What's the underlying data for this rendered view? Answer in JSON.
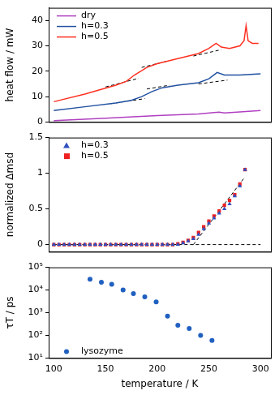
{
  "chart_data": [
    {
      "type": "line",
      "ylabel": "heat flow / mW",
      "xlim": [
        95,
        310
      ],
      "xticks": [
        100,
        150,
        200,
        250,
        300
      ],
      "ylim": [
        0,
        45
      ],
      "yticks": [
        0,
        10,
        20,
        30,
        40
      ],
      "grid": false,
      "legend": "upper left",
      "tick_labels": "y",
      "series": [
        {
          "name": "dry",
          "color": "#b040c0",
          "line_style": "solid",
          "x": [
            100,
            150,
            200,
            240,
            255,
            260,
            265,
            280,
            300
          ],
          "values": [
            0.5,
            1.5,
            2.5,
            3.2,
            3.7,
            3.9,
            3.6,
            4.0,
            4.5
          ]
        },
        {
          "name": "h=0.3",
          "color": "#2050a0",
          "line_style": "solid",
          "x": [
            100,
            130,
            160,
            175,
            185,
            195,
            205,
            220,
            240,
            250,
            258,
            265,
            280,
            300
          ],
          "values": [
            4.5,
            6,
            7.5,
            8.5,
            10,
            12,
            13.5,
            14.5,
            15.5,
            17,
            19.5,
            18.5,
            18.5,
            19
          ]
        },
        {
          "name": "h=0.5",
          "color": "#ff3020",
          "line_style": "solid",
          "x": [
            100,
            130,
            160,
            170,
            178,
            190,
            200,
            220,
            240,
            250,
            257,
            262,
            270,
            280,
            284,
            286,
            288,
            292,
            298
          ],
          "values": [
            8,
            11,
            14.5,
            16,
            18.5,
            21.5,
            23,
            25,
            27,
            29,
            31,
            29.5,
            29,
            30,
            32,
            38,
            32,
            31,
            31
          ]
        },
        {
          "color": "#000000",
          "line_style": "dashed",
          "x": [
            150,
            182
          ],
          "values": [
            13.8,
            17.2
          ]
        },
        {
          "color": "#000000",
          "line_style": "dashed",
          "x": [
            185,
            210
          ],
          "values": [
            21.5,
            24
          ]
        },
        {
          "color": "#000000",
          "line_style": "dashed",
          "x": [
            235,
            262
          ],
          "values": [
            26,
            28.5
          ]
        },
        {
          "color": "#000000",
          "line_style": "dashed",
          "x": [
            155,
            188
          ],
          "values": [
            7.2,
            9.2
          ]
        },
        {
          "color": "#000000",
          "line_style": "dashed",
          "x": [
            190,
            212
          ],
          "values": [
            13,
            14.5
          ]
        },
        {
          "color": "#000000",
          "line_style": "dashed",
          "x": [
            240,
            268
          ],
          "values": [
            15,
            16.5
          ]
        }
      ]
    },
    {
      "type": "scatter",
      "ylabel": "normalized Δmsd",
      "xlim": [
        95,
        310
      ],
      "xticks": [
        100,
        150,
        200,
        250,
        300
      ],
      "ylim": [
        -0.1,
        1.5
      ],
      "yticks": [
        0,
        0.5,
        1,
        1.5
      ],
      "grid": false,
      "legend": "upper left",
      "tick_labels": "y",
      "series": [
        {
          "name": "h=0.3",
          "color": "#3050c0",
          "marker": "triangle",
          "x": [
            100,
            105,
            110,
            115,
            120,
            125,
            130,
            135,
            140,
            145,
            150,
            155,
            160,
            165,
            170,
            175,
            180,
            185,
            190,
            195,
            200,
            205,
            210,
            215,
            220,
            225,
            230,
            235,
            240,
            245,
            250,
            255,
            260,
            265,
            270,
            275,
            280,
            285
          ],
          "values": [
            0,
            0,
            0,
            0,
            0,
            0,
            0,
            0,
            0,
            0,
            0,
            0,
            0,
            0,
            0,
            0,
            0,
            0,
            0,
            0,
            0,
            0,
            0,
            0,
            0,
            0.02,
            0.05,
            0.08,
            0.14,
            0.22,
            0.3,
            0.37,
            0.44,
            0.5,
            0.57,
            0.68,
            0.82,
            1.05
          ]
        },
        {
          "name": "h=0.5",
          "color": "#ee2020",
          "marker": "square",
          "x": [
            100,
            105,
            110,
            115,
            120,
            125,
            130,
            135,
            140,
            145,
            150,
            155,
            160,
            165,
            170,
            175,
            180,
            185,
            190,
            195,
            200,
            205,
            210,
            215,
            220,
            225,
            230,
            235,
            240,
            245,
            250,
            255,
            260,
            265,
            270,
            275,
            280,
            285
          ],
          "values": [
            0,
            0,
            0,
            0,
            0,
            0,
            0,
            0,
            0,
            0,
            0,
            0,
            0,
            0,
            0,
            0,
            0,
            0,
            0,
            0,
            0,
            0,
            0,
            0,
            0.01,
            0.03,
            0.06,
            0.1,
            0.17,
            0.25,
            0.33,
            0.4,
            0.47,
            0.55,
            0.62,
            0.7,
            0.85,
            1.05
          ]
        },
        {
          "color": "#000000",
          "line_style": "dashed",
          "x": [
            100,
            300
          ],
          "values": [
            0,
            0
          ]
        },
        {
          "color": "#000000",
          "line_style": "dashed",
          "x": [
            235,
            285
          ],
          "values": [
            0,
            0.95
          ]
        }
      ]
    },
    {
      "type": "scatter",
      "ylabel": "τT / ps",
      "xlabel": "temperature / K",
      "xlim": [
        95,
        310
      ],
      "xticks": [
        100,
        150,
        200,
        250,
        300
      ],
      "ylim": [
        10,
        100000
      ],
      "log": "y",
      "grid": false,
      "legend": "lower left",
      "yticks": [
        {
          "value": 10,
          "label": "10¹"
        },
        {
          "value": 100,
          "label": "10²"
        },
        {
          "value": 1000,
          "label": "10³"
        },
        {
          "value": 10000,
          "label": "10⁴"
        },
        {
          "value": 100000,
          "label": "10⁵"
        }
      ],
      "series": [
        {
          "name": "lysozyme",
          "color": "#2060c0",
          "marker": "circle",
          "x": [
            135,
            146,
            156,
            167,
            177,
            188,
            199,
            210,
            220,
            231,
            242,
            253
          ],
          "values": [
            30000,
            22000,
            18000,
            10000,
            7000,
            5000,
            3000,
            700,
            280,
            200,
            100,
            60
          ]
        }
      ]
    }
  ]
}
